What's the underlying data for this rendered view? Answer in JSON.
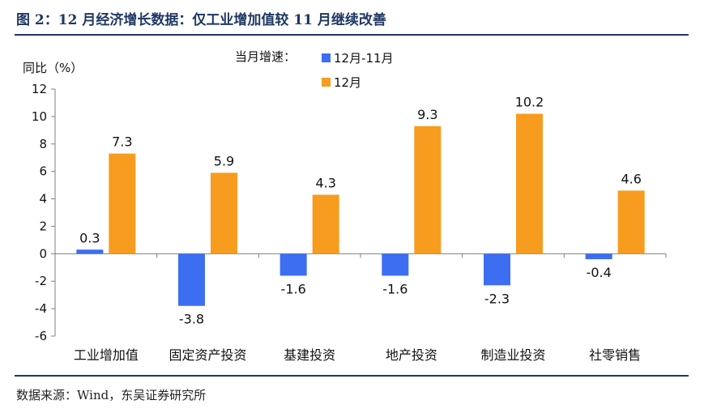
{
  "header": {
    "title": "图 2：12 月经济增长数据：仅工业增加值较 11 月继续改善"
  },
  "footer": {
    "source": "数据来源：Wind，东吴证券研究所"
  },
  "colors": {
    "series_1": "#3d6ef2",
    "series_2": "#f79c1e",
    "rule": "#1f3864"
  },
  "chart_data": {
    "type": "bar",
    "title": "",
    "ylabel": "同比（%）",
    "legend_title": "当月增速：",
    "legend_position": "top-center",
    "categories": [
      "工业增加值",
      "固定资产投资",
      "基建投资",
      "地产投资",
      "制造业投资",
      "社零销售"
    ],
    "series": [
      {
        "name": "12月-11月",
        "values": [
          0.3,
          -3.8,
          -1.6,
          -1.6,
          -2.3,
          -0.4
        ]
      },
      {
        "name": "12月",
        "values": [
          7.3,
          5.9,
          4.3,
          9.3,
          10.2,
          4.6
        ]
      }
    ],
    "data_labels": [
      [
        "0.3",
        "-3.8",
        "-1.6",
        "-1.6",
        "-2.3",
        "-0.4"
      ],
      [
        "7.3",
        "5.9",
        "4.3",
        "9.3",
        "10.2",
        "4.6"
      ]
    ],
    "yticks": [
      "12",
      "10",
      "8",
      "6",
      "4",
      "2",
      "0",
      "-2",
      "-4",
      "-6"
    ],
    "ylim": [
      -6,
      12
    ],
    "grid": false
  }
}
